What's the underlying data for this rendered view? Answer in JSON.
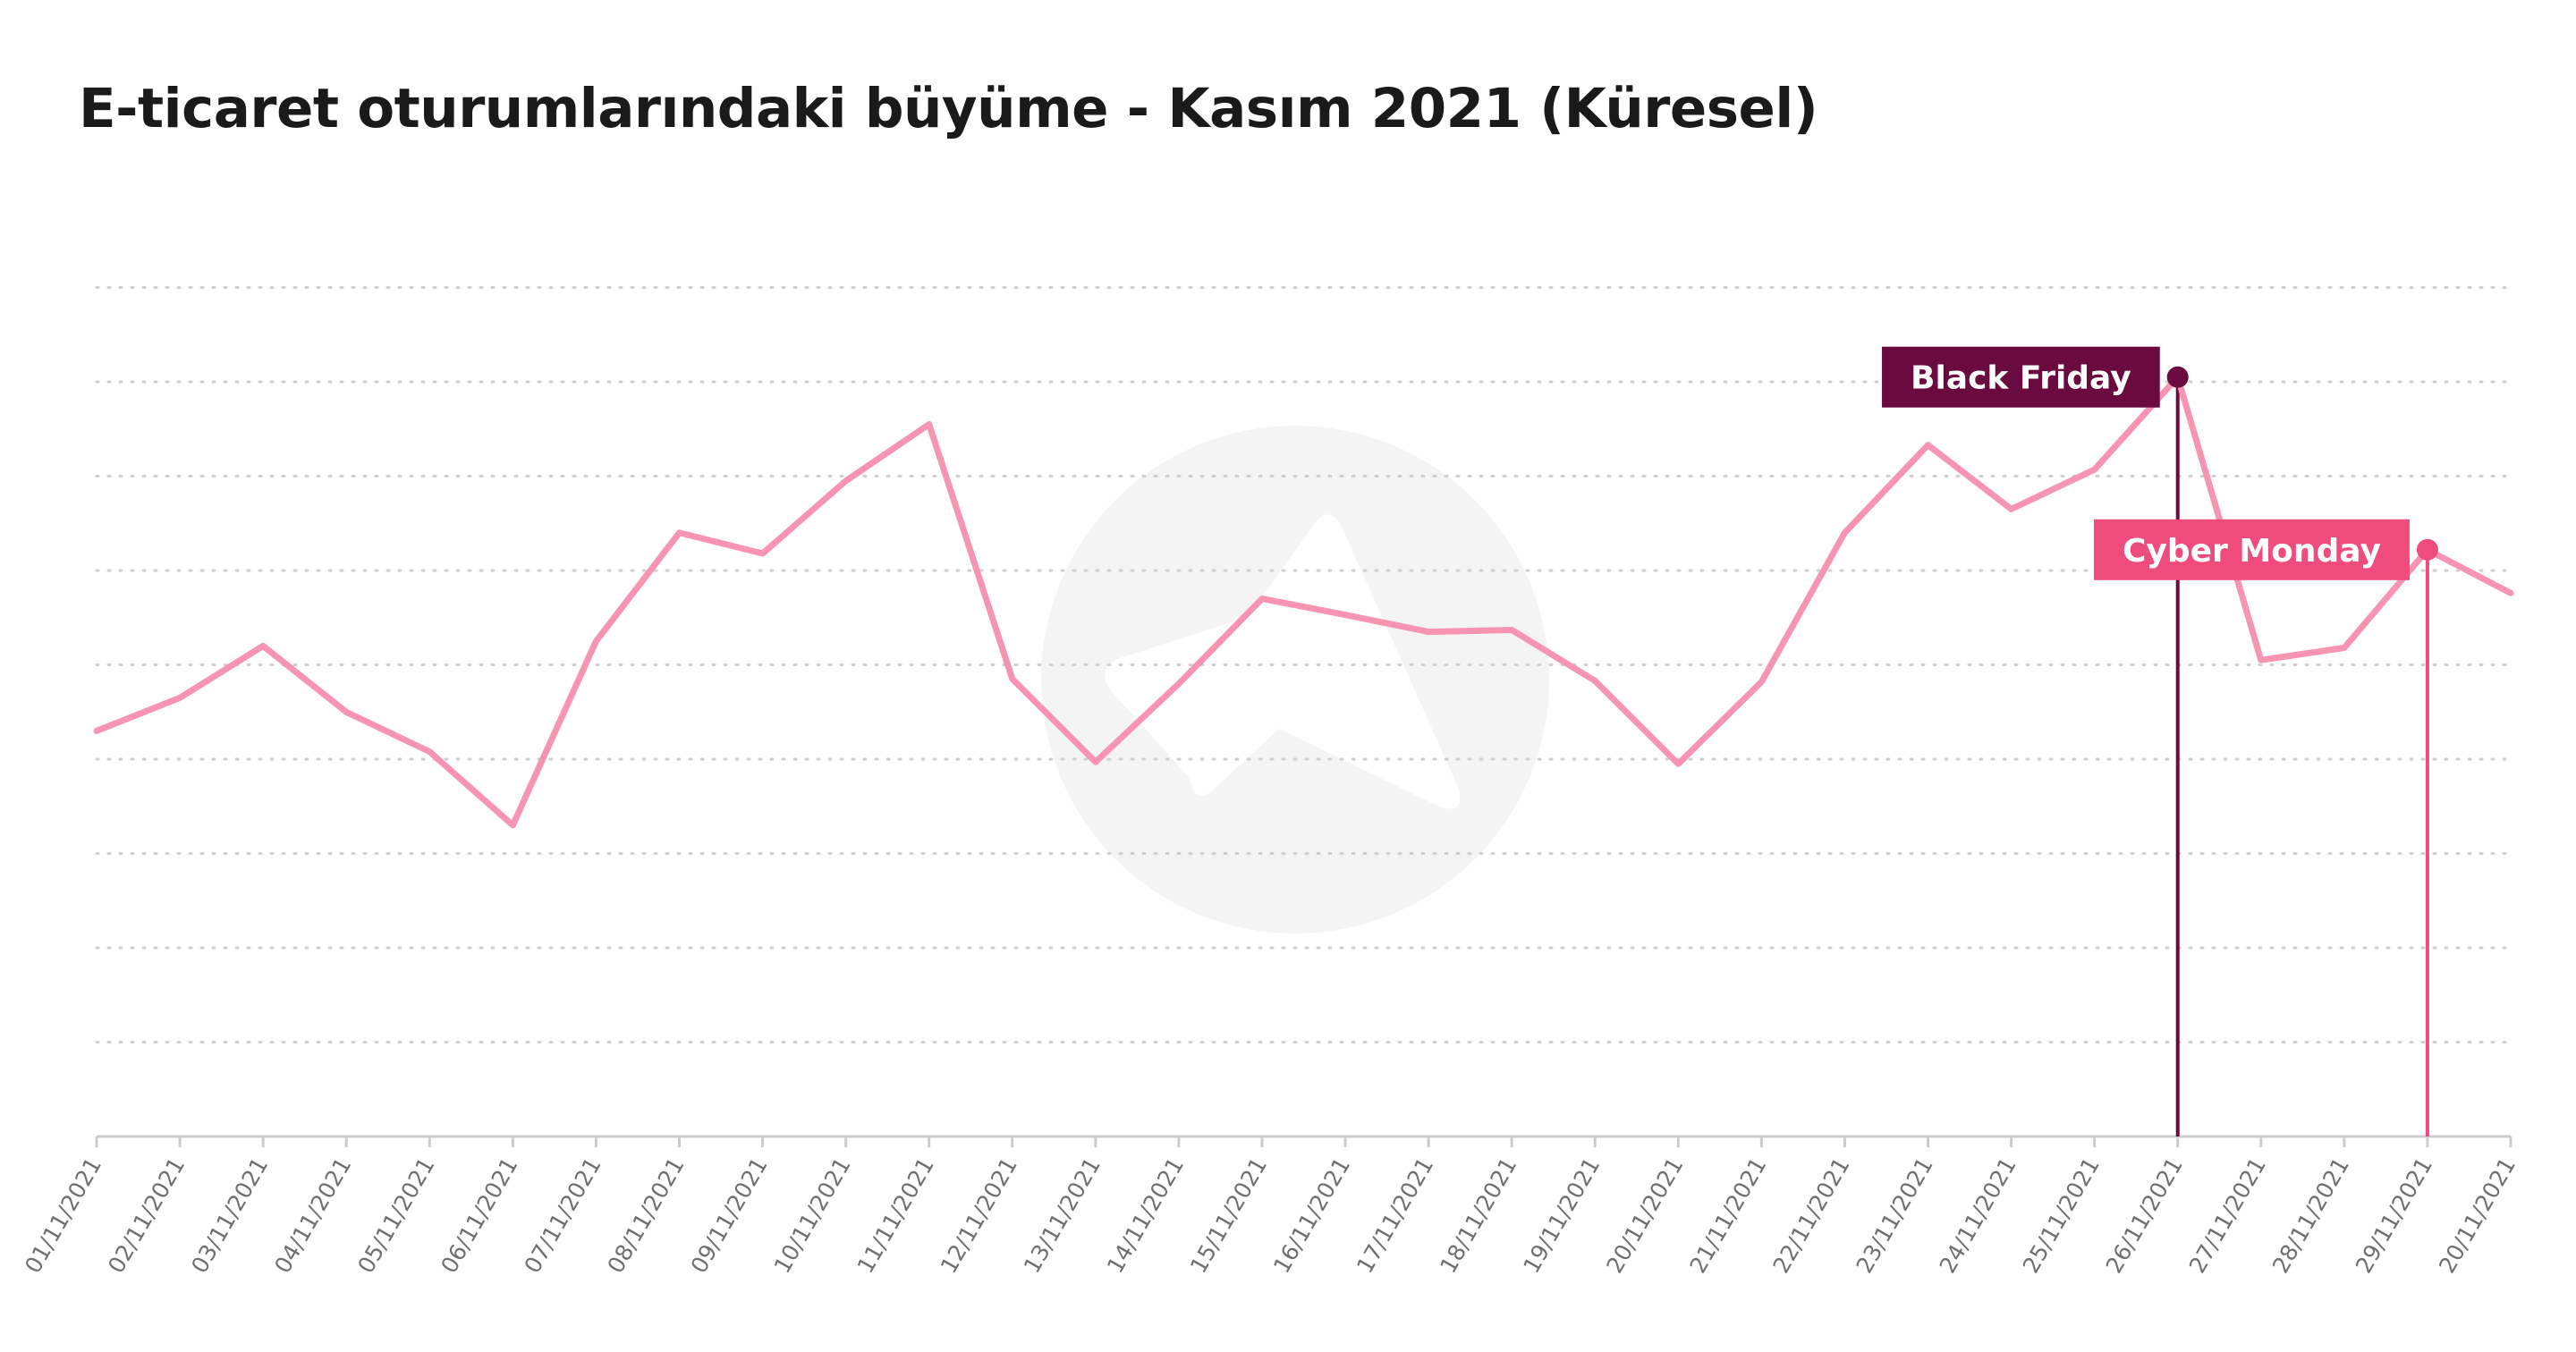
{
  "colors": {
    "line": "#f794b1",
    "grid": "#cfcfcf",
    "axis": "#cccccc",
    "black_friday": "#6b0a3f",
    "cyber_monday": "#ef4b7c",
    "watermark": "#f4f4f4",
    "title": "#1a1a1a",
    "tick_label": "#6f6f6f"
  },
  "watermark": {
    "icon": "paper-plane-logo-icon"
  },
  "chart_data": {
    "type": "line",
    "title": "E-ticaret oturumlarındaki büyüme - Kasım 2021 (Küresel)",
    "xlabel": "",
    "ylabel": "",
    "grid": true,
    "y_axis_labels": false,
    "ylim": [
      0,
      9
    ],
    "y_gridlines": [
      1,
      2,
      3,
      4,
      5,
      6,
      7,
      8,
      9
    ],
    "categories": [
      "01/11/2021",
      "02/11/2021",
      "03/11/2021",
      "04/11/2021",
      "05/11/2021",
      "06/11/2021",
      "07/11/2021",
      "08/11/2021",
      "09/11/2021",
      "10/11/2021",
      "11/11/2021",
      "12/11/2021",
      "13/11/2021",
      "14/11/2021",
      "15/11/2021",
      "16/11/2021",
      "17/11/2021",
      "18/11/2021",
      "19/11/2021",
      "20/11/2021",
      "21/11/2021",
      "22/11/2021",
      "23/11/2021",
      "24/11/2021",
      "25/11/2021",
      "26/11/2021",
      "27/11/2021",
      "28/11/2021",
      "29/11/2021",
      "20/11/2021"
    ],
    "series": [
      {
        "values": [
          4.3,
          4.65,
          5.2,
          4.5,
          4.08,
          3.3,
          5.25,
          6.4,
          6.18,
          6.95,
          7.55,
          4.85,
          3.97,
          4.8,
          5.7,
          5.53,
          5.35,
          5.37,
          4.83,
          3.95,
          4.82,
          6.4,
          7.33,
          6.65,
          7.07,
          8.05,
          5.05,
          5.18,
          6.22,
          5.76
        ]
      }
    ],
    "annotations": [
      {
        "label": "Black Friday",
        "index": 25,
        "color": "#6b0a3f"
      },
      {
        "label": "Cyber Monday",
        "index": 28,
        "color": "#ef4b7c"
      }
    ]
  }
}
